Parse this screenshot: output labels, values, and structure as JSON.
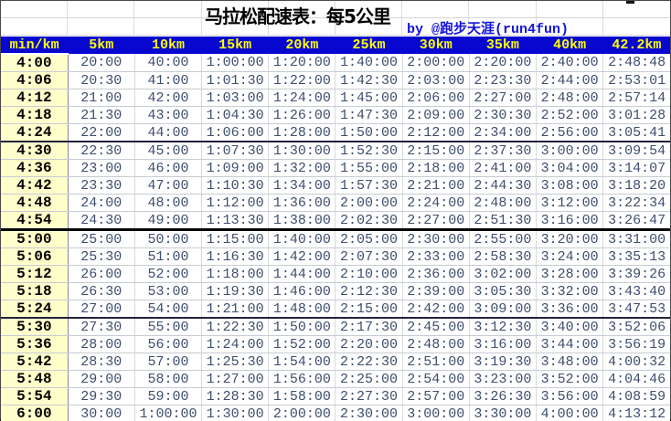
{
  "title": {
    "text": "马拉松配速表：每5公里"
  },
  "byline": {
    "text": "by @跑步天涯(run4fun)"
  },
  "colors": {
    "header_bg": "#0707d0",
    "header_text": "#ffff00",
    "pace_column_bg": "#ffffcc",
    "pace_column_text": "#000000",
    "data_text": "#3d4e6e",
    "byline_text": "#1414dd",
    "title_text": "#000000",
    "thick_separator": "#000000"
  },
  "chart_data": {
    "type": "table",
    "title": "马拉松配速表：每5公里",
    "byline": "by @跑步天涯(run4fun)",
    "columns": [
      "min/km",
      "5km",
      "10km",
      "15km",
      "20km",
      "25km",
      "30km",
      "35km",
      "40km",
      "42.2km"
    ],
    "rows": [
      [
        "4:00",
        "20:00",
        "40:00",
        "1:00:00",
        "1:20:00",
        "1:40:00",
        "2:00:00",
        "2:20:00",
        "2:40:00",
        "2:48:48"
      ],
      [
        "4:06",
        "20:30",
        "41:00",
        "1:01:30",
        "1:22:00",
        "1:42:30",
        "2:03:00",
        "2:23:30",
        "2:44:00",
        "2:53:01"
      ],
      [
        "4:12",
        "21:00",
        "42:00",
        "1:03:00",
        "1:24:00",
        "1:45:00",
        "2:06:00",
        "2:27:00",
        "2:48:00",
        "2:57:14"
      ],
      [
        "4:18",
        "21:30",
        "43:00",
        "1:04:30",
        "1:26:00",
        "1:47:30",
        "2:09:00",
        "2:30:30",
        "2:52:00",
        "3:01:28"
      ],
      [
        "4:24",
        "22:00",
        "44:00",
        "1:06:00",
        "1:28:00",
        "1:50:00",
        "2:12:00",
        "2:34:00",
        "2:56:00",
        "3:05:41"
      ],
      [
        "4:30",
        "22:30",
        "45:00",
        "1:07:30",
        "1:30:00",
        "1:52:30",
        "2:15:00",
        "2:37:30",
        "3:00:00",
        "3:09:54"
      ],
      [
        "4:36",
        "23:00",
        "46:00",
        "1:09:00",
        "1:32:00",
        "1:55:00",
        "2:18:00",
        "2:41:00",
        "3:04:00",
        "3:14:07"
      ],
      [
        "4:42",
        "23:30",
        "47:00",
        "1:10:30",
        "1:34:00",
        "1:57:30",
        "2:21:00",
        "2:44:30",
        "3:08:00",
        "3:18:20"
      ],
      [
        "4:48",
        "24:00",
        "48:00",
        "1:12:00",
        "1:36:00",
        "2:00:00",
        "2:24:00",
        "2:48:00",
        "3:12:00",
        "3:22:34"
      ],
      [
        "4:54",
        "24:30",
        "49:00",
        "1:13:30",
        "1:38:00",
        "2:02:30",
        "2:27:00",
        "2:51:30",
        "3:16:00",
        "3:26:47"
      ],
      [
        "5:00",
        "25:00",
        "50:00",
        "1:15:00",
        "1:40:00",
        "2:05:00",
        "2:30:00",
        "2:55:00",
        "3:20:00",
        "3:31:00"
      ],
      [
        "5:06",
        "25:30",
        "51:00",
        "1:16:30",
        "1:42:00",
        "2:07:30",
        "2:33:00",
        "2:58:30",
        "3:24:00",
        "3:35:13"
      ],
      [
        "5:12",
        "26:00",
        "52:00",
        "1:18:00",
        "1:44:00",
        "2:10:00",
        "2:36:00",
        "3:02:00",
        "3:28:00",
        "3:39:26"
      ],
      [
        "5:18",
        "26:30",
        "53:00",
        "1:19:30",
        "1:46:00",
        "2:12:30",
        "2:39:00",
        "3:05:30",
        "3:32:00",
        "3:43:40"
      ],
      [
        "5:24",
        "27:00",
        "54:00",
        "1:21:00",
        "1:48:00",
        "2:15:00",
        "2:42:00",
        "3:09:00",
        "3:36:00",
        "3:47:53"
      ],
      [
        "5:30",
        "27:30",
        "55:00",
        "1:22:30",
        "1:50:00",
        "2:17:30",
        "2:45:00",
        "3:12:30",
        "3:40:00",
        "3:52:06"
      ],
      [
        "5:36",
        "28:00",
        "56:00",
        "1:24:00",
        "1:52:00",
        "2:20:00",
        "2:48:00",
        "3:16:00",
        "3:44:00",
        "3:56:19"
      ],
      [
        "5:42",
        "28:30",
        "57:00",
        "1:25:30",
        "1:54:00",
        "2:22:30",
        "2:51:00",
        "3:19:30",
        "3:48:00",
        "4:00:32"
      ],
      [
        "5:48",
        "29:00",
        "58:00",
        "1:27:00",
        "1:56:00",
        "2:25:00",
        "2:54:00",
        "3:23:00",
        "3:52:00",
        "4:04:46"
      ],
      [
        "5:54",
        "29:30",
        "59:00",
        "1:28:30",
        "1:58:00",
        "2:27:30",
        "2:57:00",
        "3:26:30",
        "3:56:00",
        "4:08:59"
      ],
      [
        "6:00",
        "30:00",
        "1:00:00",
        "1:30:00",
        "2:00:00",
        "2:30:00",
        "3:00:00",
        "3:30:00",
        "4:00:00",
        "4:13:12"
      ]
    ],
    "separators": {
      "medium_after_rows": [
        5,
        15
      ],
      "thick_after_rows": [
        10
      ]
    },
    "layout_hints": {
      "header_position": "top",
      "pace_column": "min/km",
      "grid": true
    }
  }
}
